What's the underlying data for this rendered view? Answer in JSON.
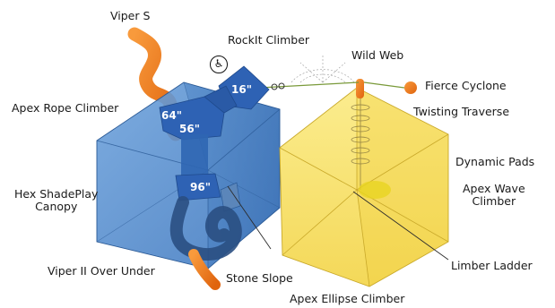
{
  "labels": {
    "viper_s": "Viper S",
    "rockit_climber": "RockIt Climber",
    "wild_web": "Wild Web",
    "fierce_cyclone": "Fierce Cyclone",
    "apex_rope_climber": "Apex Rope Climber",
    "twisting_traverse": "Twisting Traverse",
    "dynamic_pads": "Dynamic Pads",
    "apex_wave_climber": "Apex Wave\nClimber",
    "hex_shadeplay_canopy": "Hex ShadePlay\nCanopy",
    "limber_ladder": "Limber Ladder",
    "viper_ii_over_under": "Viper II Over Under",
    "stone_slope": "Stone Slope",
    "apex_ellipse_climber": "Apex Ellipse Climber"
  },
  "dimensions": {
    "deck_16": "16\"",
    "deck_64": "64\"",
    "deck_56": "56\"",
    "deck_96": "96\""
  },
  "icons": {
    "accessibility": "wheelchair-icon"
  },
  "colors": {
    "blue_canopy": "#4a86c8",
    "yellow_canopy": "#f5dc5a",
    "slide_orange": "#f07a1a",
    "deck_blue": "#2e62b4",
    "leader_line": "#2b2b2b",
    "web_green": "#7a9a3a"
  }
}
